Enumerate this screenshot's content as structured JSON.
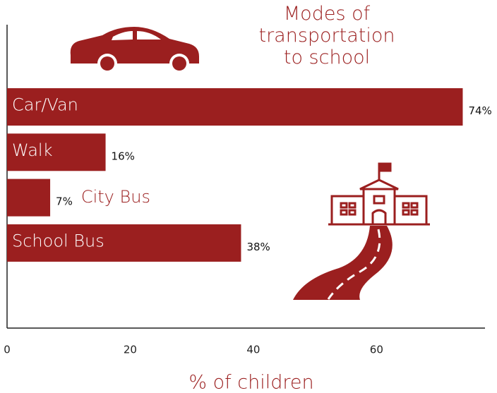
{
  "chart_data": {
    "type": "barh",
    "title": "Modes of transportation to school",
    "categories": [
      "Car/Van",
      "Walk",
      "City Bus",
      "School Bus"
    ],
    "values": [
      74,
      16,
      7,
      38
    ],
    "value_labels": [
      "74%",
      "16%",
      "7%",
      "38%"
    ],
    "color": "#9b1f1f",
    "xlabel": "% of children",
    "xlim": [
      0,
      77.5
    ],
    "xticks": [
      0,
      20,
      40,
      60
    ],
    "grid": false
  }
}
